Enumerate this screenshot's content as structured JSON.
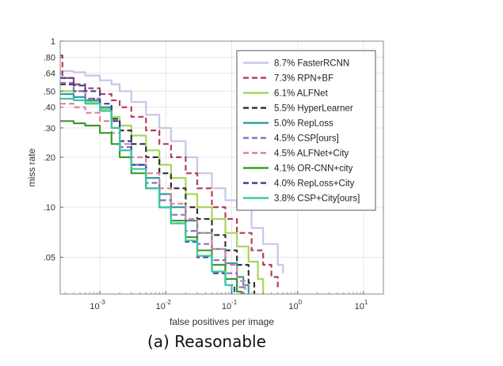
{
  "chart_data": {
    "type": "line",
    "title": "",
    "xlabel": "false positives per image",
    "ylabel": "miss rate",
    "x_scale": "log",
    "y_scale": "log",
    "xlim": [
      0.00025,
      20
    ],
    "ylim": [
      0.03,
      1
    ],
    "x_ticks": [
      {
        "value": 0.001,
        "base": "10",
        "exp": "-3"
      },
      {
        "value": 0.01,
        "base": "10",
        "exp": "-2"
      },
      {
        "value": 0.1,
        "base": "10",
        "exp": "-1"
      },
      {
        "value": 1,
        "base": "10",
        "exp": "0"
      },
      {
        "value": 10,
        "base": "10",
        "exp": "1"
      }
    ],
    "y_ticks": [
      {
        "value": 1,
        "label": "1"
      },
      {
        "value": 0.8,
        "label": ".80"
      },
      {
        "value": 0.64,
        "label": ".64"
      },
      {
        "value": 0.5,
        "label": ".50"
      },
      {
        "value": 0.4,
        "label": ".40"
      },
      {
        "value": 0.3,
        "label": ".30"
      },
      {
        "value": 0.2,
        "label": ".20"
      },
      {
        "value": 0.1,
        "label": ".10"
      },
      {
        "value": 0.05,
        "label": ".05"
      }
    ],
    "grid": true,
    "legend_position": "top-right",
    "series": [
      {
        "name": "8.7% FasterRCNN",
        "color": "#c9c5ec",
        "dash": "solid",
        "x": [
          0.00025,
          0.0004,
          0.0006,
          0.001,
          0.0015,
          0.002,
          0.003,
          0.005,
          0.008,
          0.012,
          0.02,
          0.03,
          0.05,
          0.08,
          0.12,
          0.2,
          0.3,
          0.5,
          0.6
        ],
        "y": [
          0.66,
          0.65,
          0.62,
          0.58,
          0.55,
          0.5,
          0.43,
          0.36,
          0.3,
          0.25,
          0.2,
          0.16,
          0.13,
          0.11,
          0.1,
          0.075,
          0.06,
          0.045,
          0.04
        ]
      },
      {
        "name": "7.3% RPN+BF",
        "color": "#b0405a",
        "dash": "dashed",
        "x": [
          0.00025,
          0.00027,
          0.0004,
          0.0006,
          0.001,
          0.0015,
          0.002,
          0.003,
          0.005,
          0.008,
          0.012,
          0.02,
          0.03,
          0.05,
          0.08,
          0.12,
          0.2,
          0.3,
          0.4,
          0.5
        ],
        "y": [
          0.82,
          0.6,
          0.55,
          0.52,
          0.48,
          0.44,
          0.4,
          0.35,
          0.29,
          0.24,
          0.2,
          0.16,
          0.13,
          0.1,
          0.085,
          0.07,
          0.055,
          0.045,
          0.038,
          0.032
        ]
      },
      {
        "name": "6.1% ALFNet",
        "color": "#a6d75a",
        "dash": "solid",
        "x": [
          0.00025,
          0.0004,
          0.0006,
          0.001,
          0.0015,
          0.002,
          0.003,
          0.005,
          0.008,
          0.012,
          0.02,
          0.03,
          0.05,
          0.08,
          0.12,
          0.18,
          0.25,
          0.3
        ],
        "y": [
          0.5,
          0.46,
          0.43,
          0.39,
          0.35,
          0.31,
          0.27,
          0.22,
          0.18,
          0.15,
          0.12,
          0.1,
          0.085,
          0.07,
          0.058,
          0.047,
          0.037,
          0.03
        ]
      },
      {
        "name": "5.5% HyperLearner",
        "color": "#333333",
        "dash": "dashed",
        "x": [
          0.00025,
          0.0004,
          0.0006,
          0.001,
          0.0015,
          0.002,
          0.003,
          0.005,
          0.008,
          0.012,
          0.02,
          0.03,
          0.05,
          0.08,
          0.12,
          0.18,
          0.22
        ],
        "y": [
          0.55,
          0.5,
          0.45,
          0.4,
          0.34,
          0.29,
          0.24,
          0.2,
          0.16,
          0.13,
          0.1,
          0.085,
          0.068,
          0.055,
          0.045,
          0.035,
          0.03
        ]
      },
      {
        "name": "5.0% RepLoss",
        "color": "#2e9fa6",
        "dash": "solid",
        "x": [
          0.00025,
          0.0004,
          0.0006,
          0.001,
          0.0015,
          0.002,
          0.003,
          0.005,
          0.008,
          0.012,
          0.02,
          0.03,
          0.05,
          0.08,
          0.12,
          0.15,
          0.18
        ],
        "y": [
          0.48,
          0.46,
          0.44,
          0.4,
          0.3,
          0.22,
          0.18,
          0.15,
          0.12,
          0.1,
          0.083,
          0.07,
          0.056,
          0.046,
          0.038,
          0.034,
          0.03
        ]
      },
      {
        "name": "4.5% CSP[ours]",
        "color": "#8a6fc8",
        "dash": "dashed",
        "x": [
          0.00025,
          0.0004,
          0.0006,
          0.001,
          0.0015,
          0.002,
          0.003,
          0.005,
          0.008,
          0.012,
          0.02,
          0.03,
          0.05,
          0.08,
          0.12,
          0.15
        ],
        "y": [
          0.56,
          0.5,
          0.45,
          0.38,
          0.3,
          0.23,
          0.18,
          0.14,
          0.11,
          0.09,
          0.072,
          0.06,
          0.048,
          0.04,
          0.033,
          0.03
        ]
      },
      {
        "name": "4.5% ALFNet+City",
        "color": "#e0809a",
        "dash": "dashed",
        "x": [
          0.00025,
          0.0004,
          0.0006,
          0.001,
          0.0015,
          0.002,
          0.003,
          0.005,
          0.008,
          0.012,
          0.02,
          0.03,
          0.05,
          0.08,
          0.12,
          0.16
        ],
        "y": [
          0.42,
          0.4,
          0.37,
          0.33,
          0.28,
          0.24,
          0.2,
          0.16,
          0.13,
          0.105,
          0.085,
          0.07,
          0.056,
          0.045,
          0.036,
          0.03
        ]
      },
      {
        "name": "4.1% OR-CNN+city",
        "color": "#3e9a2f",
        "dash": "solid",
        "x": [
          0.00025,
          0.0004,
          0.0006,
          0.001,
          0.0015,
          0.002,
          0.003,
          0.005,
          0.008,
          0.012,
          0.02,
          0.03,
          0.05,
          0.08,
          0.12,
          0.14
        ],
        "y": [
          0.33,
          0.32,
          0.31,
          0.28,
          0.24,
          0.2,
          0.16,
          0.13,
          0.1,
          0.083,
          0.066,
          0.055,
          0.045,
          0.037,
          0.031,
          0.03
        ]
      },
      {
        "name": "4.0% RepLoss+City",
        "color": "#3d3f9c",
        "dash": "dashed",
        "x": [
          0.00025,
          0.0004,
          0.0006,
          0.001,
          0.0015,
          0.002,
          0.003,
          0.005,
          0.008,
          0.012,
          0.02,
          0.03,
          0.05,
          0.08,
          0.11
        ],
        "y": [
          0.6,
          0.54,
          0.5,
          0.42,
          0.33,
          0.25,
          0.18,
          0.13,
          0.1,
          0.08,
          0.062,
          0.05,
          0.04,
          0.034,
          0.03
        ]
      },
      {
        "name": "3.8% CSP+City[ours]",
        "color": "#3cc9a0",
        "dash": "solid",
        "x": [
          0.00025,
          0.0004,
          0.0006,
          0.001,
          0.0015,
          0.002,
          0.003,
          0.005,
          0.008,
          0.012,
          0.02,
          0.03,
          0.05,
          0.08,
          0.1
        ],
        "y": [
          0.45,
          0.44,
          0.42,
          0.38,
          0.3,
          0.22,
          0.17,
          0.13,
          0.1,
          0.08,
          0.063,
          0.051,
          0.041,
          0.034,
          0.03
        ]
      }
    ]
  },
  "caption": "(a) Reasonable"
}
